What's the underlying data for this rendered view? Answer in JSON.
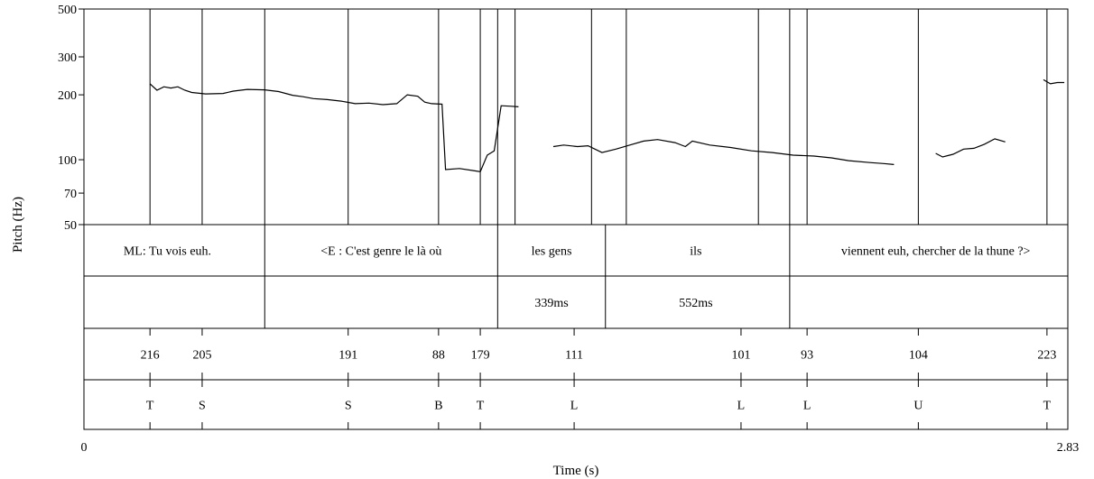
{
  "chart_data": {
    "type": "line",
    "xlabel": "Time (s)",
    "ylabel": "Pitch (Hz)",
    "x_start_label": "0",
    "x_end_label": "2.83",
    "xlim": [
      0,
      2.83
    ],
    "ylim": [
      50,
      500
    ],
    "y_scale": "log",
    "yticks": [
      500,
      300,
      200,
      100,
      70,
      50
    ],
    "series": [
      {
        "values": [
          [
            0.19,
            225
          ],
          [
            0.21,
            210
          ],
          [
            0.23,
            218
          ],
          [
            0.25,
            215
          ],
          [
            0.27,
            218
          ],
          [
            0.29,
            210
          ],
          [
            0.31,
            205
          ],
          [
            0.35,
            202
          ],
          [
            0.4,
            203
          ],
          [
            0.43,
            208
          ],
          [
            0.47,
            212
          ],
          [
            0.52,
            211
          ],
          [
            0.56,
            207
          ],
          [
            0.6,
            199
          ],
          [
            0.63,
            196
          ],
          [
            0.66,
            192
          ],
          [
            0.7,
            190
          ],
          [
            0.74,
            187
          ],
          [
            0.78,
            182
          ],
          [
            0.82,
            183
          ],
          [
            0.86,
            180
          ],
          [
            0.9,
            182
          ],
          [
            0.93,
            200
          ],
          [
            0.96,
            197
          ],
          [
            0.98,
            185
          ],
          [
            1.0,
            182
          ],
          [
            1.03,
            181
          ],
          [
            1.04,
            90
          ],
          [
            1.08,
            91
          ],
          [
            1.12,
            89
          ],
          [
            1.14,
            88
          ],
          [
            1.16,
            105
          ],
          [
            1.18,
            110
          ],
          [
            1.2,
            178
          ],
          [
            1.23,
            177
          ],
          [
            1.25,
            176
          ]
        ]
      },
      {
        "values": [
          [
            1.35,
            115
          ],
          [
            1.38,
            117
          ],
          [
            1.42,
            115
          ],
          [
            1.45,
            116
          ],
          [
            1.49,
            108
          ],
          [
            1.53,
            112
          ],
          [
            1.57,
            117
          ],
          [
            1.61,
            122
          ],
          [
            1.65,
            124
          ],
          [
            1.7,
            120
          ],
          [
            1.73,
            115
          ],
          [
            1.75,
            122
          ],
          [
            1.8,
            117
          ],
          [
            1.86,
            114
          ],
          [
            1.92,
            110
          ],
          [
            1.98,
            108
          ],
          [
            2.04,
            105
          ],
          [
            2.1,
            104
          ],
          [
            2.15,
            102
          ],
          [
            2.2,
            99
          ],
          [
            2.26,
            97
          ],
          [
            2.3,
            96
          ],
          [
            2.33,
            95
          ]
        ]
      },
      {
        "values": [
          [
            2.45,
            107
          ],
          [
            2.47,
            103
          ],
          [
            2.5,
            106
          ],
          [
            2.53,
            112
          ],
          [
            2.56,
            113
          ],
          [
            2.59,
            118
          ],
          [
            2.62,
            125
          ],
          [
            2.65,
            121
          ]
        ]
      },
      {
        "values": [
          [
            2.76,
            235
          ],
          [
            2.78,
            225
          ],
          [
            2.8,
            228
          ],
          [
            2.82,
            228
          ]
        ]
      }
    ],
    "boundaries": [
      0.19,
      0.34,
      0.52,
      0.76,
      1.02,
      1.14,
      1.19,
      1.24,
      1.46,
      1.56,
      1.94,
      2.03,
      2.08,
      2.4,
      2.77
    ],
    "tiers": [
      {
        "dividers": [
          0.52,
          1.19,
          1.5,
          2.03
        ],
        "labels": [
          {
            "t": 0.24,
            "text": "ML: Tu vois euh."
          },
          {
            "t": 0.855,
            "text": "<E : C'est genre le là où"
          },
          {
            "t": 1.345,
            "text": "les gens"
          },
          {
            "t": 1.76,
            "text": "ils"
          },
          {
            "t": 2.45,
            "text": "viennent euh, chercher de la thune ?>"
          }
        ]
      },
      {
        "dividers": [
          0.52,
          1.19,
          1.5,
          2.03
        ],
        "labels": [
          {
            "t": 1.345,
            "text": "339ms"
          },
          {
            "t": 1.76,
            "text": "552ms"
          }
        ]
      },
      {
        "dividers": [],
        "labels": [
          {
            "t": 0.19,
            "text": "216"
          },
          {
            "t": 0.34,
            "text": "205"
          },
          {
            "t": 0.76,
            "text": "191"
          },
          {
            "t": 1.02,
            "text": "88"
          },
          {
            "t": 1.14,
            "text": "179"
          },
          {
            "t": 1.41,
            "text": "111"
          },
          {
            "t": 1.89,
            "text": "101"
          },
          {
            "t": 2.08,
            "text": "93"
          },
          {
            "t": 2.4,
            "text": "104"
          },
          {
            "t": 2.77,
            "text": "223"
          }
        ]
      },
      {
        "dividers": [],
        "labels": [
          {
            "t": 0.19,
            "text": "T"
          },
          {
            "t": 0.34,
            "text": "S"
          },
          {
            "t": 0.76,
            "text": "S"
          },
          {
            "t": 1.02,
            "text": "B"
          },
          {
            "t": 1.14,
            "text": "T"
          },
          {
            "t": 1.41,
            "text": "L"
          },
          {
            "t": 1.89,
            "text": "L"
          },
          {
            "t": 2.08,
            "text": "L"
          },
          {
            "t": 2.4,
            "text": "U"
          },
          {
            "t": 2.77,
            "text": "T"
          }
        ]
      }
    ]
  }
}
